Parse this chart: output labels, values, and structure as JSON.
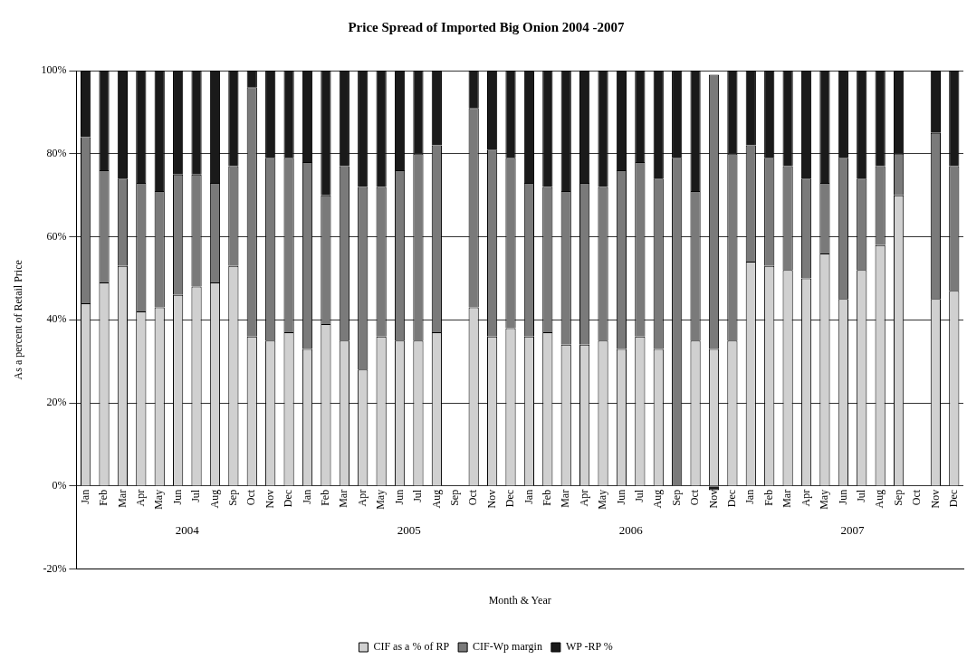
{
  "chart_data": {
    "type": "bar",
    "stacked": true,
    "title": "Price Spread of Imported Big Onion 2004 -2007",
    "xlabel": "Month & Year",
    "ylabel": "As a percent of Retail Price",
    "categories": [
      "Jan",
      "Feb",
      "Mar",
      "Apr",
      "May",
      "Jun",
      "Jul",
      "Aug",
      "Sep",
      "Oct",
      "Nov",
      "Dec",
      "Jan",
      "Feb",
      "Mar",
      "Apr",
      "May",
      "Jun",
      "Jul",
      "Aug",
      "Sep",
      "Oct",
      "Nov",
      "Dec",
      "Jan",
      "Feb",
      "Mar",
      "Apr",
      "May",
      "Jun",
      "Jul",
      "Aug",
      "Sep",
      "Oct",
      "Nov",
      "Dec",
      "Jan",
      "Feb",
      "Mar",
      "Apr",
      "May",
      "Jun",
      "Jul",
      "Aug",
      "Sep",
      "Oct",
      "Nov",
      "Dec"
    ],
    "series": [
      {
        "name": "CIF as a % of RP",
        "color": "#d0d0d0",
        "values": [
          44,
          49,
          53,
          42,
          43,
          46,
          48,
          49,
          53,
          36,
          35,
          37,
          33,
          39,
          35,
          28,
          36,
          35,
          35,
          37,
          null,
          43,
          36,
          38,
          36,
          37,
          34,
          34,
          35,
          33,
          36,
          33,
          0,
          35,
          33,
          35,
          54,
          53,
          52,
          50,
          56,
          45,
          52,
          58,
          70,
          null,
          45,
          47
        ]
      },
      {
        "name": "CIF-Wp margin",
        "color": "#7a7a7a",
        "values": [
          40,
          27,
          21,
          31,
          28,
          29,
          27,
          24,
          24,
          60,
          44,
          42,
          45,
          31,
          42,
          44,
          36,
          41,
          45,
          45,
          null,
          48,
          45,
          41,
          37,
          35,
          37,
          39,
          37,
          43,
          42,
          41,
          79,
          36,
          66,
          45,
          28,
          26,
          25,
          24,
          17,
          34,
          22,
          19,
          10,
          null,
          40,
          30
        ]
      },
      {
        "name": "WP -RP %",
        "color": "#1a1a1a",
        "values": [
          16,
          24,
          26,
          27,
          29,
          25,
          25,
          27,
          23,
          4,
          21,
          21,
          22,
          30,
          23,
          28,
          28,
          24,
          20,
          18,
          null,
          9,
          19,
          21,
          27,
          28,
          29,
          27,
          28,
          24,
          22,
          26,
          21,
          29,
          -1,
          20,
          18,
          21,
          23,
          26,
          27,
          21,
          26,
          23,
          20,
          null,
          15,
          23
        ]
      }
    ],
    "ylim": [
      -20,
      100
    ],
    "yticks": [
      {
        "value": -20,
        "label": "-20%"
      },
      {
        "value": 0,
        "label": "0%"
      },
      {
        "value": 20,
        "label": "20%"
      },
      {
        "value": 40,
        "label": "40%"
      },
      {
        "value": 60,
        "label": "60%"
      },
      {
        "value": 80,
        "label": "80%"
      },
      {
        "value": 100,
        "label": "100%"
      }
    ],
    "grid": "y",
    "legend": "bottom",
    "annotations": [
      "2004",
      "2005",
      "2006",
      "2007"
    ]
  }
}
